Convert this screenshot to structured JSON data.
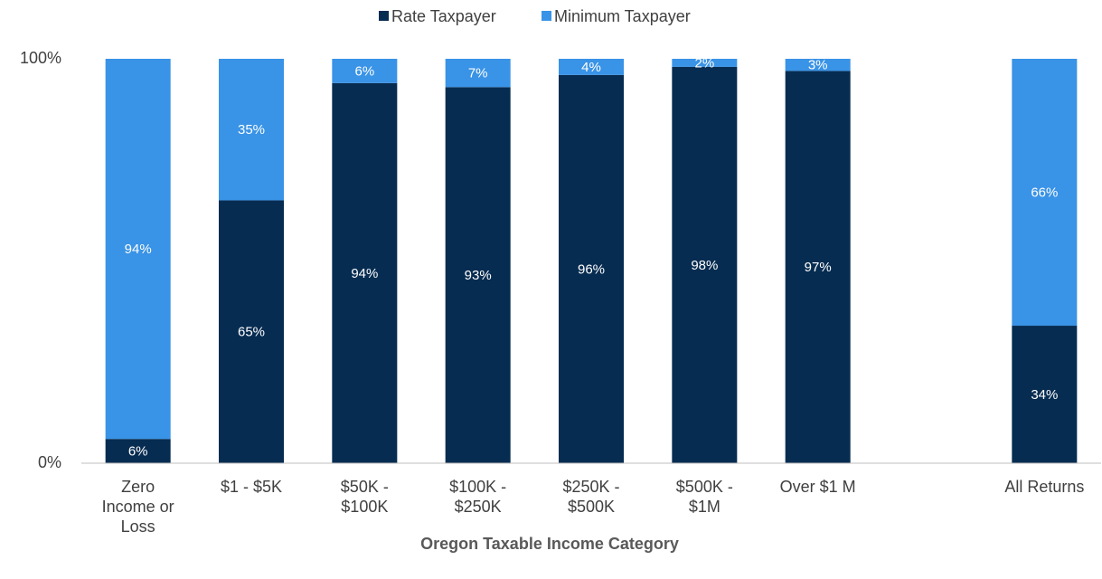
{
  "chart_data": {
    "type": "stacked_bar",
    "x_label": "Oregon Taxable Income Category",
    "categories": [
      "Zero Income or Loss",
      "$1 - $5K",
      "$50K - $100K",
      "$100K - $250K",
      "$250K - $500K",
      "$500K - $1M",
      "Over $1 M",
      null,
      "All Returns"
    ],
    "series": [
      {
        "name": "Rate Taxpayer",
        "color": "#072c51",
        "values": [
          6,
          65,
          94,
          93,
          96,
          98,
          97,
          null,
          34
        ],
        "value_labels": [
          "6%",
          "65%",
          "94%",
          "93%",
          "96%",
          "98%",
          "97%",
          null,
          "34%"
        ]
      },
      {
        "name": "Minimum Taxpayer",
        "color": "#3993e6",
        "values": [
          94,
          35,
          6,
          7,
          4,
          2,
          3,
          null,
          66
        ],
        "value_labels": [
          "94%",
          "35%",
          "6%",
          "7%",
          "4%",
          "2%",
          "3%",
          null,
          "66%"
        ]
      }
    ],
    "ylim": [
      0,
      100
    ],
    "yticks": [
      {
        "value": 0,
        "label": "0%"
      },
      {
        "value": 100,
        "label": "100%"
      }
    ],
    "legend": "top"
  }
}
